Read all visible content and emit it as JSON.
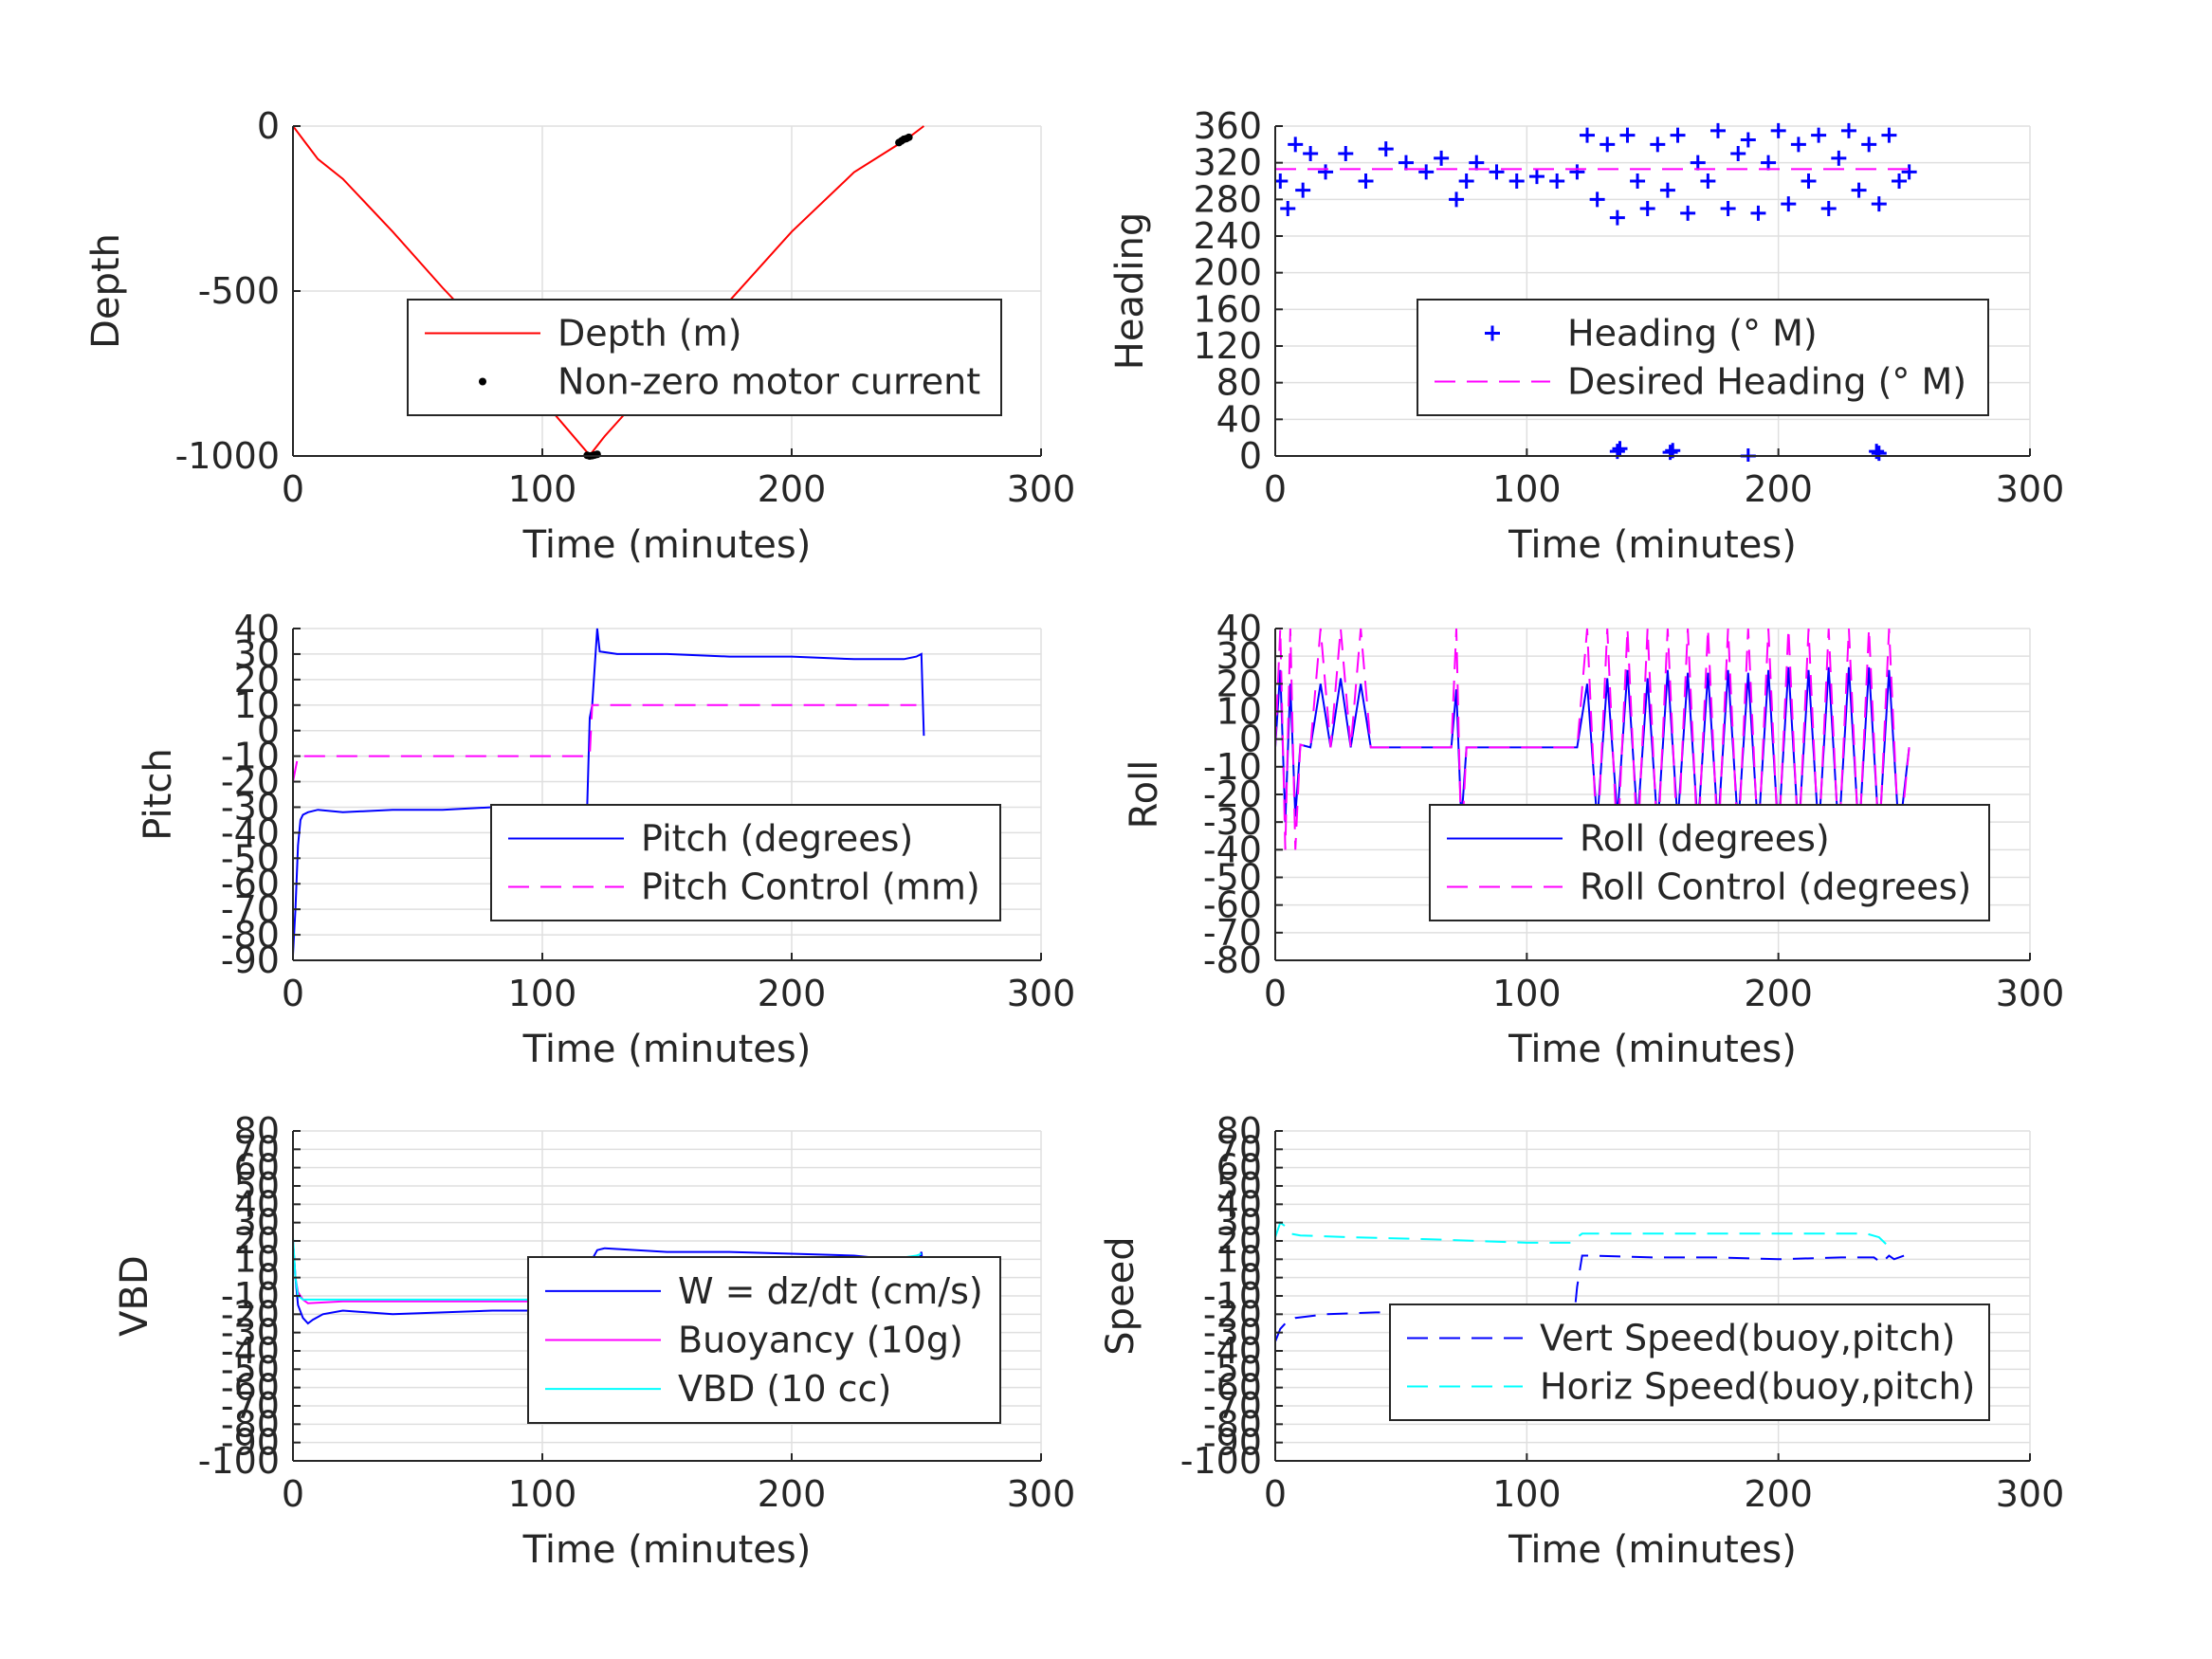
{
  "chart_data": [
    {
      "type": "line",
      "ylabel": "Depth",
      "xlabel": "Time (minutes)",
      "xlim": [
        0,
        300
      ],
      "ylim": [
        -1000,
        0
      ],
      "xticks": [
        0,
        100,
        200,
        300
      ],
      "yticks": [
        -1000,
        -500,
        0
      ],
      "ytick_labels": [
        "-1000",
        "-500",
        "0"
      ],
      "grid": true,
      "legend_position": "center-right",
      "series": [
        {
          "name": "Depth (m)",
          "color": "#ff0000",
          "dash": "solid",
          "marker": "none",
          "x": [
            0,
            5,
            10,
            20,
            40,
            60,
            80,
            100,
            119,
            125,
            150,
            175,
            200,
            225,
            246,
            253
          ],
          "y": [
            0,
            -50,
            -100,
            -160,
            -320,
            -490,
            -650,
            -830,
            -998,
            -940,
            -730,
            -530,
            -320,
            -140,
            -40,
            0
          ]
        },
        {
          "name": "Non-zero motor current",
          "color": "#000000",
          "dash": "none",
          "marker": "dot",
          "x": [
            118,
            119,
            120,
            121,
            122,
            243,
            244,
            245,
            246,
            247
          ],
          "y": [
            -998,
            -1000,
            -999,
            -997,
            -995,
            -50,
            -45,
            -40,
            -38,
            -34
          ]
        }
      ]
    },
    {
      "type": "line",
      "ylabel": "Heading",
      "xlabel": "Time (minutes)",
      "xlim": [
        0,
        300
      ],
      "ylim": [
        0,
        360
      ],
      "xticks": [
        0,
        100,
        200,
        300
      ],
      "yticks": [
        0,
        40,
        80,
        120,
        160,
        200,
        240,
        280,
        320,
        360
      ],
      "ytick_labels": [
        "0",
        "40",
        "80",
        "120",
        "160",
        "200",
        "240",
        "280",
        "320",
        "360"
      ],
      "grid": true,
      "legend_position": "center-right",
      "series": [
        {
          "name": "Heading (° M)",
          "color": "#0000ff",
          "dash": "none",
          "marker": "plus",
          "x": [
            2,
            5,
            8,
            11,
            14,
            20,
            28,
            36,
            44,
            52,
            60,
            66,
            72,
            76,
            80,
            88,
            96,
            104,
            112,
            120,
            124,
            128,
            132,
            136,
            140,
            144,
            148,
            152,
            156,
            160,
            164,
            168,
            172,
            176,
            180,
            184,
            188,
            192,
            196,
            200,
            204,
            208,
            212,
            216,
            220,
            224,
            228,
            232,
            236,
            240,
            244,
            248,
            252,
            136,
            137,
            157,
            158,
            188,
            239,
            240
          ],
          "y": [
            300,
            270,
            340,
            290,
            330,
            310,
            330,
            300,
            335,
            320,
            310,
            325,
            280,
            300,
            320,
            310,
            300,
            305,
            300,
            310,
            350,
            280,
            340,
            260,
            350,
            300,
            270,
            340,
            290,
            350,
            265,
            320,
            300,
            355,
            270,
            330,
            345,
            265,
            320,
            355,
            275,
            340,
            300,
            350,
            270,
            325,
            355,
            290,
            340,
            275,
            350,
            300,
            310,
            5,
            8,
            4,
            6,
            0,
            5,
            3
          ]
        },
        {
          "name": "Desired Heading (° M)",
          "color": "#ff00ff",
          "dash": "dash",
          "marker": "none",
          "x": [
            0,
            120,
            253
          ],
          "y": [
            313,
            313,
            313
          ]
        }
      ]
    },
    {
      "type": "line",
      "ylabel": "Pitch",
      "xlabel": "Time (minutes)",
      "xlim": [
        0,
        300
      ],
      "ylim": [
        -90,
        40
      ],
      "xticks": [
        0,
        100,
        200,
        300
      ],
      "yticks": [
        -90,
        -80,
        -70,
        -60,
        -50,
        -40,
        -30,
        -20,
        -10,
        0,
        10,
        20,
        30,
        40
      ],
      "ytick_labels": [
        "-90",
        "-80",
        "-70",
        "-60",
        "-50",
        "-40",
        "-30",
        "-20",
        "-10",
        "0",
        "10",
        "20",
        "30",
        "40"
      ],
      "grid": true,
      "legend_position": "bottom-right",
      "series": [
        {
          "name": "Pitch (degrees)",
          "color": "#0000ff",
          "dash": "solid",
          "marker": "none",
          "x": [
            0,
            1,
            2,
            3,
            4,
            6,
            10,
            20,
            40,
            60,
            80,
            100,
            110,
            118,
            119,
            120,
            122,
            123,
            130,
            150,
            175,
            200,
            225,
            245,
            250,
            252,
            253
          ],
          "y": [
            -88,
            -70,
            -45,
            -35,
            -33,
            -32,
            -31,
            -32,
            -31,
            -31,
            -30,
            -30,
            -30,
            -30,
            5,
            10,
            40,
            31,
            30,
            30,
            29,
            29,
            28,
            28,
            29,
            30,
            -2
          ]
        },
        {
          "name": "Pitch Control (mm)",
          "color": "#ff00ff",
          "dash": "dash",
          "marker": "none",
          "x": [
            0,
            2,
            4,
            119,
            120,
            250
          ],
          "y": [
            -20,
            -10,
            -10,
            -10,
            10,
            10
          ]
        }
      ]
    },
    {
      "type": "line",
      "ylabel": "Roll",
      "xlabel": "Time (minutes)",
      "xlim": [
        0,
        300
      ],
      "ylim": [
        -80,
        40
      ],
      "xticks": [
        0,
        100,
        200,
        300
      ],
      "yticks": [
        -80,
        -70,
        -60,
        -50,
        -40,
        -30,
        -20,
        -10,
        0,
        10,
        20,
        30,
        40
      ],
      "ytick_labels": [
        "-80",
        "-70",
        "-60",
        "-50",
        "-40",
        "-30",
        "-20",
        "-10",
        "0",
        "10",
        "20",
        "30",
        "40"
      ],
      "grid": true,
      "legend_position": "bottom-right",
      "series": [
        {
          "name": "Roll (degrees)",
          "color": "#0000ff",
          "dash": "solid",
          "marker": "none",
          "x": [
            0,
            2,
            4,
            6,
            8,
            10,
            14,
            18,
            22,
            26,
            30,
            34,
            38,
            42,
            50,
            60,
            70,
            72,
            74,
            76,
            80,
            100,
            120,
            124,
            128,
            132,
            136,
            140,
            144,
            148,
            152,
            156,
            160,
            164,
            168,
            172,
            176,
            180,
            184,
            188,
            192,
            196,
            200,
            204,
            208,
            212,
            216,
            220,
            224,
            228,
            232,
            236,
            240,
            244,
            248,
            252
          ],
          "y": [
            -3,
            25,
            -30,
            20,
            -28,
            -2,
            -3,
            20,
            -3,
            22,
            -3,
            20,
            -3,
            -3,
            -3,
            -3,
            -3,
            18,
            -30,
            -3,
            -3,
            -3,
            -3,
            20,
            -30,
            22,
            -28,
            25,
            -30,
            22,
            -32,
            25,
            -30,
            24,
            -32,
            24,
            -32,
            25,
            -32,
            24,
            -34,
            25,
            -34,
            26,
            -34,
            25,
            -34,
            26,
            -35,
            26,
            -35,
            26,
            -35,
            25,
            -35,
            -3
          ]
        },
        {
          "name": "Roll Control (degrees)",
          "color": "#ff00ff",
          "dash": "dash",
          "marker": "none",
          "x": [
            0,
            2,
            4,
            6,
            8,
            10,
            14,
            18,
            22,
            26,
            30,
            34,
            38,
            42,
            50,
            60,
            70,
            72,
            74,
            76,
            80,
            100,
            120,
            124,
            128,
            132,
            136,
            140,
            144,
            148,
            152,
            156,
            160,
            164,
            168,
            172,
            176,
            180,
            184,
            188,
            192,
            196,
            200,
            204,
            208,
            212,
            216,
            220,
            224,
            228,
            232,
            236,
            240,
            244,
            248,
            252
          ],
          "y": [
            -3,
            40,
            -40,
            40,
            -40,
            -2,
            -3,
            40,
            -3,
            40,
            -3,
            40,
            -3,
            -3,
            -3,
            -3,
            -3,
            40,
            -40,
            -3,
            -3,
            -3,
            -3,
            40,
            -40,
            40,
            -40,
            40,
            -40,
            40,
            -40,
            40,
            -40,
            40,
            -40,
            40,
            -40,
            40,
            -40,
            40,
            -40,
            40,
            -40,
            40,
            -40,
            40,
            -40,
            40,
            -40,
            40,
            -40,
            40,
            -40,
            40,
            -40,
            -3
          ]
        }
      ]
    },
    {
      "type": "line",
      "ylabel": "VBD",
      "xlabel": "Time (minutes)",
      "xlim": [
        0,
        300
      ],
      "ylim": [
        -100,
        80
      ],
      "xticks": [
        0,
        100,
        200,
        300
      ],
      "yticks": [
        -100,
        -90,
        -80,
        -70,
        -60,
        -50,
        -40,
        -30,
        -20,
        -10,
        0,
        10,
        20,
        30,
        40,
        50,
        60,
        70,
        80
      ],
      "ytick_labels": [
        "-100",
        "-90",
        "-80",
        "-70",
        "-60",
        "-50",
        "-40",
        "-30",
        "-20",
        "-10",
        "0",
        "10",
        "20",
        "30",
        "40",
        "50",
        "60",
        "70",
        "80"
      ],
      "grid": true,
      "legend_position": "right",
      "series": [
        {
          "name": "W = dz/dt (cm/s)",
          "color": "#0000ff",
          "dash": "solid",
          "marker": "none",
          "x": [
            0,
            1,
            2,
            4,
            6,
            8,
            12,
            20,
            40,
            60,
            80,
            100,
            118,
            119,
            120,
            122,
            125,
            150,
            175,
            200,
            225,
            240,
            245,
            250,
            252,
            253
          ],
          "y": [
            20,
            0,
            -15,
            -22,
            -25,
            -23,
            -20,
            -18,
            -20,
            -19,
            -18,
            -18,
            -18,
            5,
            10,
            15,
            16,
            14,
            14,
            13,
            12,
            10,
            8,
            5,
            14,
            0
          ]
        },
        {
          "name": "Buoyancy (10g)",
          "color": "#ff00ff",
          "dash": "solid",
          "marker": "none",
          "x": [
            0,
            1,
            2,
            4,
            6,
            20,
            50,
            100,
            118,
            120,
            122,
            150,
            200,
            235,
            240,
            245,
            250,
            252
          ],
          "y": [
            20,
            0,
            -8,
            -12,
            -14,
            -13,
            -13,
            -13,
            -13,
            5,
            10,
            10,
            10,
            10,
            8,
            6,
            7,
            10
          ]
        },
        {
          "name": "VBD (10 cc)",
          "color": "#00ffff",
          "dash": "solid",
          "marker": "none",
          "x": [
            0,
            1,
            2,
            4,
            6,
            20,
            50,
            100,
            118,
            120,
            122,
            150,
            200,
            235,
            240,
            245,
            250,
            252
          ],
          "y": [
            22,
            0,
            -10,
            -12,
            -12,
            -12,
            -12,
            -12,
            -12,
            5,
            11,
            11,
            11,
            11,
            10,
            11,
            12,
            13
          ]
        }
      ]
    },
    {
      "type": "line",
      "ylabel": "Speed",
      "xlabel": "Time (minutes)",
      "xlim": [
        0,
        300
      ],
      "ylim": [
        -100,
        80
      ],
      "xticks": [
        0,
        100,
        200,
        300
      ],
      "yticks": [
        -100,
        -90,
        -80,
        -70,
        -60,
        -50,
        -40,
        -30,
        -20,
        -10,
        0,
        10,
        20,
        30,
        40,
        50,
        60,
        70,
        80
      ],
      "ytick_labels": [
        "-100",
        "-90",
        "-80",
        "-70",
        "-60",
        "-50",
        "-40",
        "-30",
        "-20",
        "-10",
        "0",
        "10",
        "20",
        "30",
        "40",
        "50",
        "60",
        "70",
        "80"
      ],
      "grid": true,
      "legend_position": "bottom-right",
      "series": [
        {
          "name": "Vert Speed(buoy,pitch)",
          "color": "#0000ff",
          "dash": "dash",
          "marker": "none",
          "x": [
            0,
            2,
            4,
            8,
            20,
            40,
            60,
            80,
            100,
            119,
            120,
            122,
            125,
            150,
            175,
            200,
            225,
            238,
            241,
            244,
            246,
            250,
            253
          ],
          "y": [
            -35,
            -28,
            -25,
            -22,
            -20,
            -19,
            -19,
            -19,
            -19,
            -19,
            -5,
            12,
            12,
            11,
            11,
            10,
            11,
            11,
            8,
            12,
            10,
            12,
            11
          ]
        },
        {
          "name": "Horiz Speed(buoy,pitch)",
          "color": "#00ffff",
          "dash": "dash",
          "marker": "none",
          "x": [
            0,
            2,
            4,
            6,
            10,
            30,
            60,
            100,
            118,
            120,
            122,
            150,
            200,
            235,
            240,
            243,
            246
          ],
          "y": [
            22,
            30,
            28,
            24,
            23,
            22,
            21,
            19,
            19,
            22,
            24,
            24,
            24,
            24,
            22,
            18,
            20
          ]
        }
      ]
    }
  ]
}
